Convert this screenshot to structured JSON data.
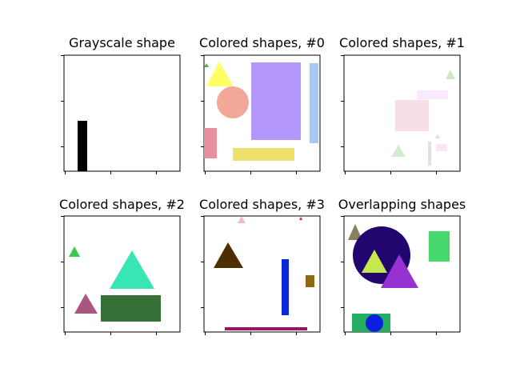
{
  "panels": [
    {
      "title": "Grayscale shape",
      "shapes": [
        {
          "type": "rect",
          "color": "#000000"
        }
      ]
    },
    {
      "title": "Colored shapes, #0",
      "shapes": [
        {
          "type": "triangle",
          "color": "#4caf50"
        },
        {
          "type": "triangle",
          "color": "#ffff66"
        },
        {
          "type": "rect",
          "color": "#b497fa"
        },
        {
          "type": "rect",
          "color": "#a7c7f5"
        },
        {
          "type": "circle",
          "color": "#f2a898"
        },
        {
          "type": "rect",
          "color": "#e98e9f"
        },
        {
          "type": "rect",
          "color": "#efe06b"
        }
      ]
    },
    {
      "title": "Colored shapes, #1",
      "shapes": [
        {
          "type": "triangle",
          "color": "#cfe5c8"
        },
        {
          "type": "rect",
          "color": "#f9eafb"
        },
        {
          "type": "rect",
          "color": "#f7dfea"
        },
        {
          "type": "triangle",
          "color": "#e6d8ee"
        },
        {
          "type": "rect",
          "color": "#f8e5f3"
        },
        {
          "type": "triangle",
          "color": "#d3ecd1"
        },
        {
          "type": "rect",
          "color": "#dde0ea"
        }
      ]
    },
    {
      "title": "Colored shapes, #2",
      "shapes": [
        {
          "type": "triangle",
          "color": "#3cc84e"
        },
        {
          "type": "triangle",
          "color": "#38e6b4"
        },
        {
          "type": "triangle",
          "color": "#a8587f"
        },
        {
          "type": "rect",
          "color": "#357038"
        }
      ]
    },
    {
      "title": "Colored shapes, #3",
      "shapes": [
        {
          "type": "triangle",
          "color": "#f0b8d6"
        },
        {
          "type": "triangle",
          "color": "#cc2266"
        },
        {
          "type": "triangle",
          "color": "#4d2e00"
        },
        {
          "type": "rect",
          "color": "#0a28d4"
        },
        {
          "type": "rect",
          "color": "#8e6a16"
        },
        {
          "type": "rect",
          "color": "#a01160"
        }
      ]
    },
    {
      "title": "Overlapping shapes",
      "shapes": [
        {
          "type": "triangle",
          "color": "#8a7d60"
        },
        {
          "type": "circle",
          "color": "#220670"
        },
        {
          "type": "triangle",
          "color": "#c5e84e"
        },
        {
          "type": "triangle",
          "color": "#9632d1"
        },
        {
          "type": "rect",
          "color": "#45d86c"
        },
        {
          "type": "rect",
          "color": "#22ad5f"
        },
        {
          "type": "circle",
          "color": "#0a1fe0"
        }
      ]
    }
  ]
}
